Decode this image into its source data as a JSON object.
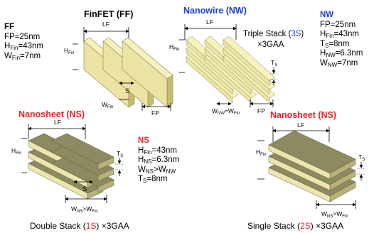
{
  "ff": {
    "title": "FinFET (FF)",
    "params_title": "FF",
    "p1": "FP=25nm",
    "p2_a": "H",
    "p2_sub": "Fin",
    "p2_b": "=43nm",
    "p3_a": "W",
    "p3_sub": "Fin",
    "p3_b": "=7nm",
    "lf": "LF",
    "hfin_a": "H",
    "hfin_sub": "Fin",
    "s": "S",
    "wfin_a": "W",
    "wfin_sub": "Fin",
    "fp": "FP"
  },
  "nw": {
    "title": "Nanowire (NW)",
    "subtitle_a": "Triple Stack (",
    "subtitle_b": "3S",
    "subtitle_c": ")",
    "subtitle2": "×3GAA",
    "params_title": "NW",
    "p1": "FP=25nm",
    "p2_a": "H",
    "p2_sub": "Fin",
    "p2_b": "=43nm",
    "p3_a": "T",
    "p3_sub": "S",
    "p3_b": "=8nm",
    "p4_a": "H",
    "p4_sub": "NW",
    "p4_b": "=6.3nm",
    "p5_a": "W",
    "p5_sub": "NW",
    "p5_b": "=7nm",
    "lf": "LF",
    "hfin_a": "H",
    "hfin_sub": "Fin",
    "ts_a": "T",
    "ts_sub": "S",
    "w_a": "W",
    "w_sub1": "NW",
    "w_mid": "=W",
    "w_sub2": "Fin",
    "fp": "FP"
  },
  "ns1": {
    "title": "Nanosheet (NS)",
    "params_title": "NS",
    "p1_a": "H",
    "p1_sub": "Fin",
    "p1_b": "=43nm",
    "p2_a": "H",
    "p2_sub": "NS",
    "p2_b": "=6.3nm",
    "p3_a": "W",
    "p3_sub1": "NS",
    "p3_mid": ">W",
    "p3_sub2": "NW",
    "p4_a": "T",
    "p4_sub": "S",
    "p4_b": "=8nm",
    "lf": "LF",
    "hfin_a": "H",
    "hfin_sub": "Fin",
    "ts_a": "T",
    "ts_sub": "S",
    "s": "S",
    "w_a": "W",
    "w_sub1": "NS",
    "w_mid": ">W",
    "w_sub2": "Fin",
    "caption_a": "Double Stack (",
    "caption_b": "1S",
    "caption_c": ") ×3GAA"
  },
  "ns2": {
    "title": "Nanosheet (NS)",
    "lf": "LF",
    "hfin_a": "H",
    "hfin_sub": "Fin",
    "ts_a": "T",
    "ts_sub": "S",
    "w_a": "W",
    "w_sub1": "NS",
    "w_mid": ">W",
    "w_sub2": "Fin",
    "caption_a": "Single Stack (",
    "caption_b": "2S",
    "caption_c": ") ×3GAA"
  },
  "colors": {
    "fin_top": "#f6f1bf",
    "fin_front": "#ebe3a2",
    "fin_side": "#c7bd72",
    "sheet_top": "#8c8a5e",
    "sheet_front": "#ede5b0",
    "sheet_side": "#b9b07a",
    "accent_red": "#e8232a",
    "accent_blue": "#1f3fd6"
  }
}
